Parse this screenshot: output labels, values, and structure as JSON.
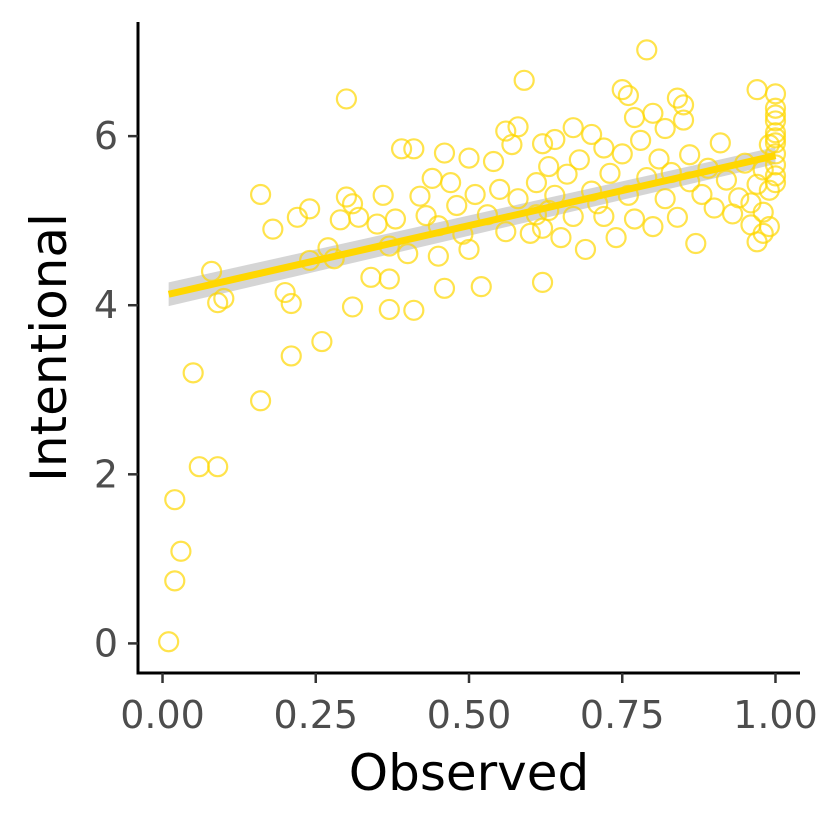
{
  "chart_data": {
    "type": "scatter",
    "title": "",
    "xlabel": "Observed",
    "ylabel": "Intentional",
    "xlim": [
      -0.04,
      1.04
    ],
    "ylim": [
      -0.35,
      7.35
    ],
    "xticks": [
      0.0,
      0.25,
      0.5,
      0.75,
      1.0
    ],
    "xtick_labels": [
      "0.00",
      "0.25",
      "0.50",
      "0.75",
      "1.00"
    ],
    "yticks": [
      0,
      2,
      4,
      6
    ],
    "ytick_labels": [
      "0",
      "2",
      "4",
      "6"
    ],
    "grid": false,
    "legend": "none",
    "point_color": "#FFD700",
    "fit_line": {
      "x": [
        0.01,
        1.0
      ],
      "y": [
        4.13,
        5.77
      ],
      "color": "#FFD700",
      "band_color": "#BEBEBE"
    },
    "series": [
      {
        "marker": "open-circle",
        "points": [
          [
            0.01,
            0.02
          ],
          [
            0.02,
            0.74
          ],
          [
            0.02,
            1.7
          ],
          [
            0.03,
            1.09
          ],
          [
            0.05,
            3.2
          ],
          [
            0.06,
            2.09
          ],
          [
            0.09,
            2.09
          ],
          [
            0.08,
            4.4
          ],
          [
            0.09,
            4.03
          ],
          [
            0.1,
            4.08
          ],
          [
            0.16,
            5.31
          ],
          [
            0.16,
            2.87
          ],
          [
            0.18,
            4.9
          ],
          [
            0.2,
            4.15
          ],
          [
            0.21,
            4.02
          ],
          [
            0.21,
            3.4
          ],
          [
            0.22,
            5.04
          ],
          [
            0.24,
            5.14
          ],
          [
            0.24,
            4.53
          ],
          [
            0.26,
            3.57
          ],
          [
            0.27,
            4.68
          ],
          [
            0.28,
            4.55
          ],
          [
            0.29,
            5.01
          ],
          [
            0.3,
            6.44
          ],
          [
            0.3,
            5.28
          ],
          [
            0.31,
            3.98
          ],
          [
            0.31,
            5.2
          ],
          [
            0.32,
            5.04
          ],
          [
            0.34,
            4.33
          ],
          [
            0.35,
            4.96
          ],
          [
            0.36,
            5.3
          ],
          [
            0.37,
            4.7
          ],
          [
            0.37,
            4.31
          ],
          [
            0.37,
            3.95
          ],
          [
            0.38,
            5.02
          ],
          [
            0.39,
            5.85
          ],
          [
            0.4,
            4.61
          ],
          [
            0.41,
            5.85
          ],
          [
            0.41,
            3.94
          ],
          [
            0.42,
            5.29
          ],
          [
            0.43,
            5.06
          ],
          [
            0.44,
            5.5
          ],
          [
            0.45,
            4.94
          ],
          [
            0.45,
            4.58
          ],
          [
            0.46,
            5.8
          ],
          [
            0.46,
            4.2
          ],
          [
            0.47,
            5.45
          ],
          [
            0.48,
            5.18
          ],
          [
            0.49,
            4.84
          ],
          [
            0.5,
            5.74
          ],
          [
            0.5,
            4.66
          ],
          [
            0.51,
            5.31
          ],
          [
            0.52,
            4.22
          ],
          [
            0.53,
            5.07
          ],
          [
            0.54,
            5.7
          ],
          [
            0.55,
            5.37
          ],
          [
            0.56,
            6.06
          ],
          [
            0.56,
            4.87
          ],
          [
            0.57,
            5.9
          ],
          [
            0.58,
            6.11
          ],
          [
            0.58,
            5.26
          ],
          [
            0.59,
            6.66
          ],
          [
            0.6,
            4.85
          ],
          [
            0.61,
            5.45
          ],
          [
            0.61,
            5.07
          ],
          [
            0.62,
            5.91
          ],
          [
            0.62,
            4.91
          ],
          [
            0.62,
            4.27
          ],
          [
            0.63,
            5.64
          ],
          [
            0.63,
            5.12
          ],
          [
            0.64,
            5.96
          ],
          [
            0.64,
            5.3
          ],
          [
            0.65,
            4.8
          ],
          [
            0.66,
            5.55
          ],
          [
            0.67,
            6.1
          ],
          [
            0.67,
            5.05
          ],
          [
            0.68,
            5.72
          ],
          [
            0.69,
            4.66
          ],
          [
            0.7,
            6.02
          ],
          [
            0.7,
            5.35
          ],
          [
            0.71,
            5.2
          ],
          [
            0.72,
            5.86
          ],
          [
            0.72,
            5.05
          ],
          [
            0.73,
            5.56
          ],
          [
            0.74,
            4.8
          ],
          [
            0.75,
            6.55
          ],
          [
            0.75,
            5.79
          ],
          [
            0.76,
            6.48
          ],
          [
            0.76,
            5.3
          ],
          [
            0.77,
            6.22
          ],
          [
            0.77,
            5.02
          ],
          [
            0.78,
            5.95
          ],
          [
            0.79,
            7.02
          ],
          [
            0.79,
            5.51
          ],
          [
            0.8,
            4.93
          ],
          [
            0.8,
            6.27
          ],
          [
            0.81,
            5.73
          ],
          [
            0.82,
            5.26
          ],
          [
            0.82,
            6.09
          ],
          [
            0.83,
            5.57
          ],
          [
            0.84,
            6.45
          ],
          [
            0.84,
            5.04
          ],
          [
            0.85,
            6.37
          ],
          [
            0.85,
            6.19
          ],
          [
            0.86,
            5.46
          ],
          [
            0.86,
            5.78
          ],
          [
            0.87,
            4.73
          ],
          [
            0.88,
            5.31
          ],
          [
            0.89,
            5.62
          ],
          [
            0.9,
            5.15
          ],
          [
            0.91,
            5.92
          ],
          [
            0.92,
            5.48
          ],
          [
            0.93,
            5.08
          ],
          [
            0.94,
            5.27
          ],
          [
            0.95,
            5.68
          ],
          [
            0.96,
            5.21
          ],
          [
            0.96,
            4.95
          ],
          [
            0.97,
            6.55
          ],
          [
            0.97,
            5.43
          ],
          [
            0.97,
            4.75
          ],
          [
            0.98,
            5.6
          ],
          [
            0.98,
            5.1
          ],
          [
            0.98,
            4.85
          ],
          [
            0.99,
            5.36
          ],
          [
            0.99,
            5.9
          ],
          [
            0.99,
            4.93
          ],
          [
            1.0,
            6.5
          ],
          [
            1.0,
            6.33
          ],
          [
            1.0,
            6.18
          ],
          [
            1.0,
            6.04
          ],
          [
            1.0,
            5.92
          ],
          [
            1.0,
            5.79
          ],
          [
            1.0,
            5.66
          ],
          [
            1.0,
            5.53
          ],
          [
            1.0,
            5.45
          ],
          [
            1.0,
            5.98
          ],
          [
            1.0,
            6.25
          ]
        ]
      }
    ]
  }
}
